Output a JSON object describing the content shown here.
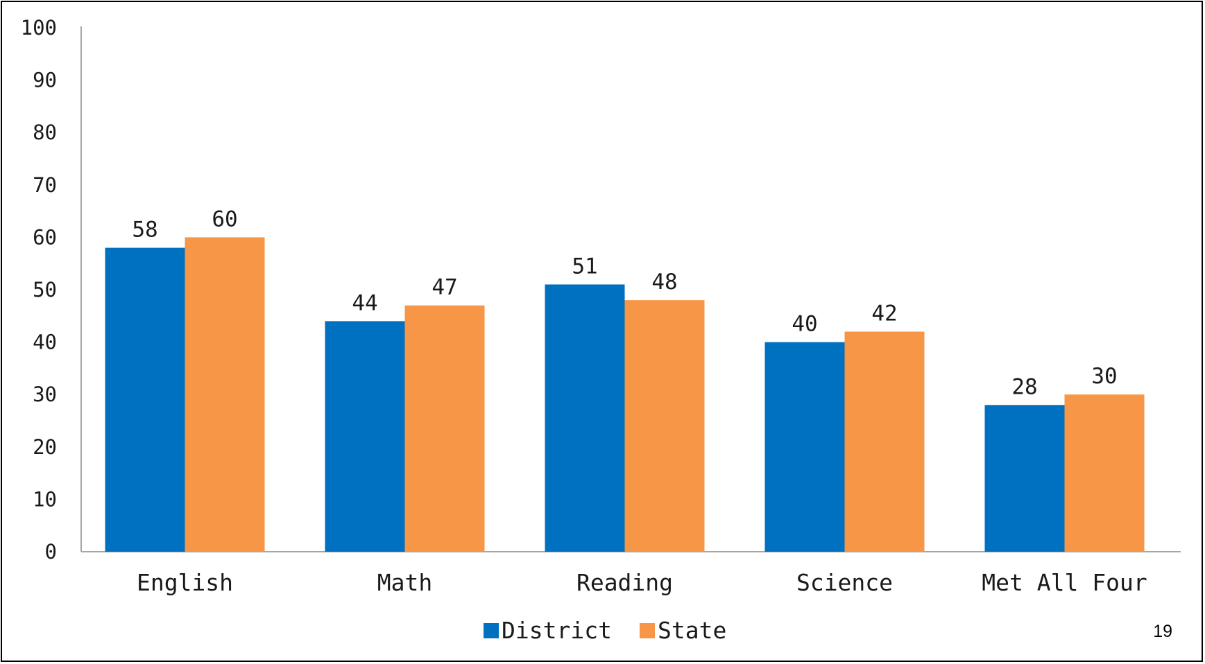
{
  "chart_data": {
    "type": "bar",
    "title": "",
    "xlabel": "",
    "ylabel": "",
    "categories": [
      "English",
      "Math",
      "Reading",
      "Science",
      "Met All Four"
    ],
    "series": [
      {
        "name": "District",
        "color": "#0070C0",
        "values": [
          58,
          44,
          51,
          40,
          28
        ]
      },
      {
        "name": "State",
        "color": "#F79646",
        "values": [
          60,
          47,
          48,
          42,
          30
        ]
      }
    ],
    "ylim": [
      0,
      100
    ],
    "yticks": [
      0,
      10,
      20,
      30,
      40,
      50,
      60,
      70,
      80,
      90,
      100
    ],
    "grid": false,
    "legend": "bottom",
    "data_labels": true
  },
  "page": {
    "number": "19"
  }
}
